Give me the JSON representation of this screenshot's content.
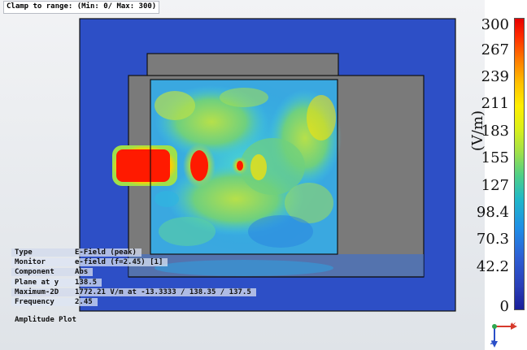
{
  "clamp_label": "Clamp to range: (Min: 0/ Max: 300)",
  "info": [
    {
      "key": "Type",
      "value": "E-Field (peak)"
    },
    {
      "key": "Monitor",
      "value": "e-field (f=2.45) [1]"
    },
    {
      "key": "Component",
      "value": "Abs"
    },
    {
      "key": "Plane at y",
      "value": "138.5"
    },
    {
      "key": "Maximum-2D",
      "value": "1772.21 V/m at -13.3333 / 138.35 / 137.5"
    },
    {
      "key": "Frequency",
      "value": "2.45"
    }
  ],
  "plot_kind": "Amplitude Plot",
  "legend": {
    "unit": "(V/m)",
    "ticks": [
      "300",
      "267",
      "239",
      "211",
      "183",
      "155",
      "127",
      "98.4",
      "70.3",
      "42.2",
      "0"
    ]
  },
  "axes": {
    "x": "x",
    "z": "z"
  },
  "colors": {
    "background_blue": "#2a4fc8",
    "metal_gray": "#7b7b7b",
    "field_hot": "#e60000",
    "field_yellow": "#ffe000",
    "field_green": "#8fd46a",
    "field_cyan": "#3ec8e6"
  }
}
